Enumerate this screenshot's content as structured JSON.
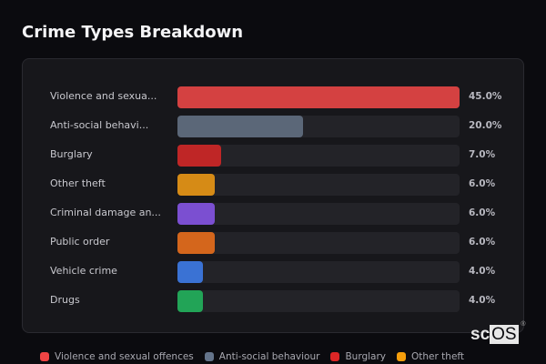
{
  "header": {
    "title": "Crime Types Breakdown"
  },
  "brand": {
    "prefix": "sc",
    "highlight": "OS",
    "mark": "®"
  },
  "chart_data": {
    "type": "bar",
    "orientation": "horizontal",
    "title": "Crime Types Breakdown",
    "xlabel": "",
    "ylabel": "",
    "categories": [
      "Violence and sexual offences",
      "Anti-social behaviour",
      "Burglary",
      "Other theft",
      "Criminal damage and arson",
      "Public order",
      "Vehicle crime",
      "Drugs"
    ],
    "display_labels": [
      "Violence and sexua...",
      "Anti-social behavi...",
      "Burglary",
      "Other theft",
      "Criminal damage an...",
      "Public order",
      "Vehicle crime",
      "Drugs"
    ],
    "values": [
      45.0,
      20.0,
      7.0,
      6.0,
      6.0,
      6.0,
      4.0,
      4.0
    ],
    "value_labels": [
      "45.0%",
      "20.0%",
      "7.0%",
      "6.0%",
      "6.0%",
      "6.0%",
      "4.0%",
      "4.0%"
    ],
    "colors": [
      "#d44141",
      "#5b6778",
      "#bf2626",
      "#d68b16",
      "#7b4fd1",
      "#d4661c",
      "#3a72d4",
      "#22a457"
    ],
    "xlim": [
      0,
      45
    ],
    "grid": false,
    "legend": {
      "position": "bottom",
      "entries": [
        {
          "label": "Violence and sexual offences",
          "color": "#ef4444"
        },
        {
          "label": "Anti-social behaviour",
          "color": "#64748b"
        },
        {
          "label": "Burglary",
          "color": "#dc2626"
        },
        {
          "label": "Other theft",
          "color": "#f59e0b"
        }
      ]
    }
  }
}
